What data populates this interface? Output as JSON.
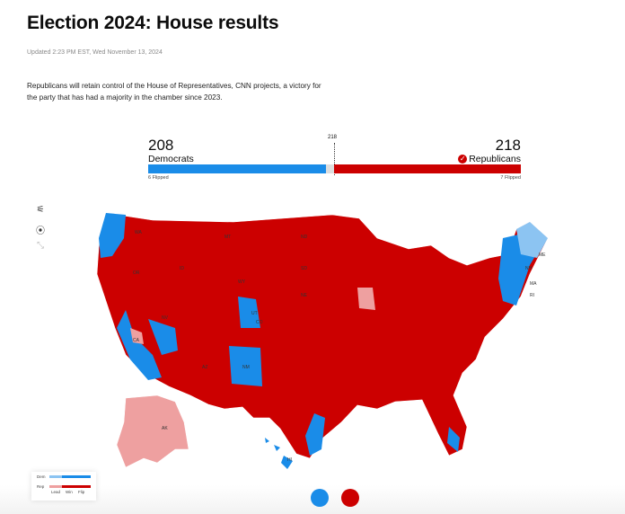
{
  "header": {
    "title": "Election 2024: House results",
    "updated": "Updated 2:23 PM EST, Wed November 13, 2024",
    "summary": "Republicans will retain control of the House of Representatives, CNN projects, a victory for the party that has had a majority in the chamber since 2023."
  },
  "tally": {
    "dem_seats": "208",
    "dem_label": "Democrats",
    "dem_flipped": "6 Flipped",
    "rep_seats": "218",
    "rep_label": "Republicans",
    "rep_flipped": "7 Flipped",
    "majority": "218",
    "total_seats": 435,
    "winner": "Republicans"
  },
  "colors": {
    "dem": "#1a8ce8",
    "dem_lead": "#8cc4f2",
    "rep": "#cc0000",
    "rep_lead": "#eea0a0",
    "undecided": "#dddddd"
  },
  "map": {
    "state_labels": [
      "WA",
      "OR",
      "ID",
      "MT",
      "WY",
      "ND",
      "SD",
      "NE",
      "NV",
      "UT",
      "CO",
      "CA",
      "AZ",
      "NM",
      "ME",
      "NH",
      "MA",
      "RI",
      "AK",
      "HI"
    ]
  },
  "tools": [
    "filter-icon",
    "location-pin-icon",
    "fullscreen-icon"
  ],
  "legend": {
    "dem": "Dem",
    "rep": "Rep",
    "lead": "Lead",
    "win": "Win",
    "flip": "Flip"
  }
}
